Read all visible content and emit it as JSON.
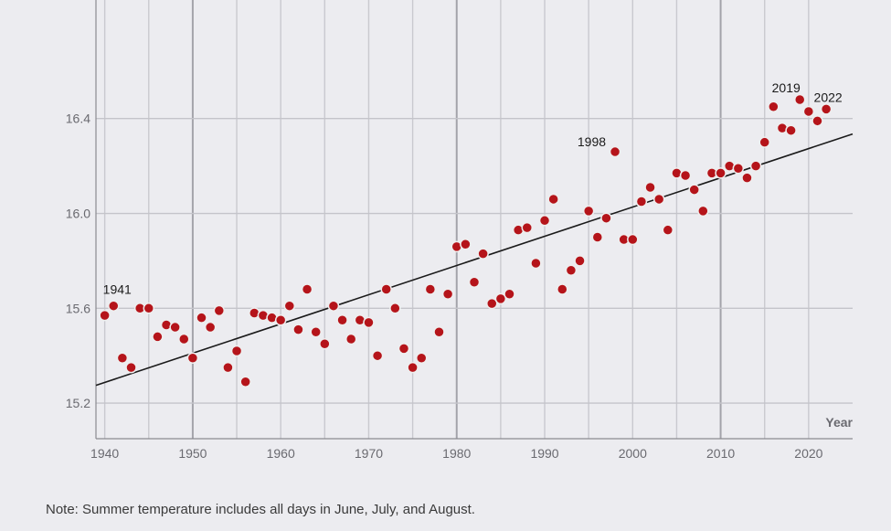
{
  "chart_data": {
    "type": "scatter",
    "xlabel": "Year",
    "ylabel": "",
    "xlim": [
      1939,
      2025
    ],
    "ylim": [
      15.05,
      16.9
    ],
    "x_ticks": [
      1940,
      1950,
      1960,
      1970,
      1980,
      1990,
      2000,
      2010,
      2020
    ],
    "y_ticks": [
      15.2,
      15.6,
      16.0,
      16.4
    ],
    "y_tick_labels": [
      "15.2",
      "15.6",
      "16.0",
      "16.4"
    ],
    "grid": true,
    "point_color": "#b5141a",
    "trend_line": {
      "x": [
        1939,
        2025
      ],
      "y": [
        15.275,
        16.335
      ]
    },
    "annotations": [
      {
        "label": "1941",
        "x": 1941
      },
      {
        "label": "1998",
        "x": 1998
      },
      {
        "label": "2019",
        "x": 2019
      },
      {
        "label": "2022",
        "x": 2022
      }
    ],
    "points": [
      [
        1940,
        15.57
      ],
      [
        1941,
        15.61
      ],
      [
        1942,
        15.39
      ],
      [
        1943,
        15.35
      ],
      [
        1944,
        15.6
      ],
      [
        1945,
        15.6
      ],
      [
        1946,
        15.48
      ],
      [
        1947,
        15.53
      ],
      [
        1948,
        15.52
      ],
      [
        1949,
        15.47
      ],
      [
        1950,
        15.39
      ],
      [
        1951,
        15.56
      ],
      [
        1952,
        15.52
      ],
      [
        1953,
        15.59
      ],
      [
        1954,
        15.35
      ],
      [
        1955,
        15.42
      ],
      [
        1956,
        15.29
      ],
      [
        1957,
        15.58
      ],
      [
        1958,
        15.57
      ],
      [
        1959,
        15.56
      ],
      [
        1960,
        15.55
      ],
      [
        1961,
        15.61
      ],
      [
        1962,
        15.51
      ],
      [
        1963,
        15.68
      ],
      [
        1964,
        15.5
      ],
      [
        1965,
        15.45
      ],
      [
        1966,
        15.61
      ],
      [
        1967,
        15.55
      ],
      [
        1968,
        15.47
      ],
      [
        1969,
        15.55
      ],
      [
        1970,
        15.54
      ],
      [
        1971,
        15.4
      ],
      [
        1972,
        15.68
      ],
      [
        1973,
        15.6
      ],
      [
        1974,
        15.43
      ],
      [
        1975,
        15.35
      ],
      [
        1976,
        15.39
      ],
      [
        1977,
        15.68
      ],
      [
        1978,
        15.5
      ],
      [
        1979,
        15.66
      ],
      [
        1980,
        15.86
      ],
      [
        1981,
        15.87
      ],
      [
        1982,
        15.71
      ],
      [
        1983,
        15.83
      ],
      [
        1984,
        15.62
      ],
      [
        1985,
        15.64
      ],
      [
        1986,
        15.66
      ],
      [
        1987,
        15.93
      ],
      [
        1988,
        15.94
      ],
      [
        1989,
        15.79
      ],
      [
        1990,
        15.97
      ],
      [
        1991,
        16.06
      ],
      [
        1992,
        15.68
      ],
      [
        1993,
        15.76
      ],
      [
        1994,
        15.8
      ],
      [
        1995,
        16.01
      ],
      [
        1996,
        15.9
      ],
      [
        1997,
        15.98
      ],
      [
        1998,
        16.26
      ],
      [
        1999,
        15.89
      ],
      [
        2000,
        15.89
      ],
      [
        2001,
        16.05
      ],
      [
        2002,
        16.11
      ],
      [
        2003,
        16.06
      ],
      [
        2004,
        15.93
      ],
      [
        2005,
        16.17
      ],
      [
        2006,
        16.16
      ],
      [
        2007,
        16.1
      ],
      [
        2008,
        16.01
      ],
      [
        2009,
        16.17
      ],
      [
        2010,
        16.17
      ],
      [
        2011,
        16.2
      ],
      [
        2012,
        16.19
      ],
      [
        2013,
        16.15
      ],
      [
        2014,
        16.2
      ],
      [
        2015,
        16.3
      ],
      [
        2016,
        16.45
      ],
      [
        2017,
        16.36
      ],
      [
        2018,
        16.35
      ],
      [
        2019,
        16.48
      ],
      [
        2020,
        16.43
      ],
      [
        2021,
        16.39
      ],
      [
        2022,
        16.44
      ]
    ]
  },
  "footer": {
    "note": "Note: Summer temperature includes all days in June, July, and August."
  }
}
